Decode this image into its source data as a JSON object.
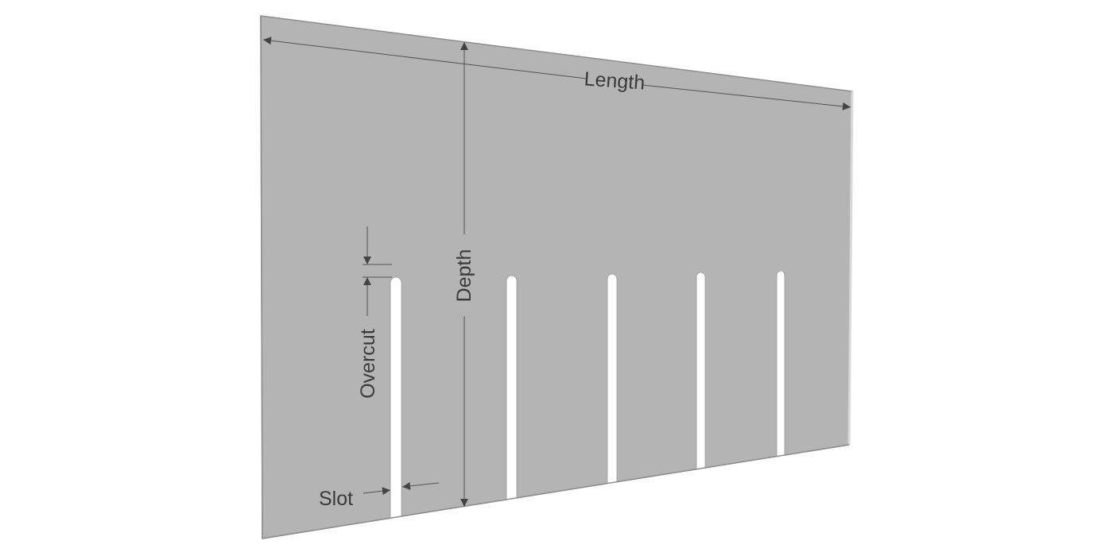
{
  "diagram": {
    "labels": {
      "length": "Length",
      "depth": "Depth",
      "overcut": "Overcut",
      "slot": "Slot"
    },
    "slot_count": 5,
    "colors": {
      "panel": "#b4b4b4",
      "panel_edge": "#8e8e8e",
      "dimension_lines": "#555555",
      "text": "#3a3a3a"
    }
  }
}
